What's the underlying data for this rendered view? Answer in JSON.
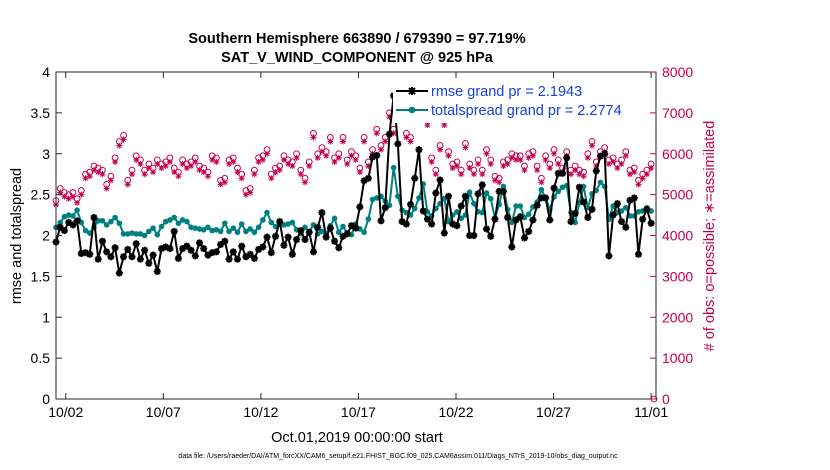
{
  "chart_data": {
    "type": "line",
    "title": "Southern Hemisphere 663890 / 679390 = 97.719%",
    "subtitle": "SAT_V_WIND_COMPONENT @ 925 hPa",
    "xlabel": "Oct.01,2019 00:00:00 start",
    "ylabel": "rmse and totalspread",
    "y2label": "# of obs: o=possible; ∗=assimilated",
    "footnote": "data file: /Users/raeder/DAI/ATM_forcXX/CAM6_setup/f.e21.FHIST_BGC.f09_025.CAM6assim.011/Diags_NTrS_2019-10/obs_diag_output.nc",
    "xlim": [
      0.5,
      31.25
    ],
    "x_ticks": [
      1,
      6,
      11,
      16,
      21,
      26,
      31
    ],
    "x_tick_labels": [
      "10/02",
      "10/07",
      "10/12",
      "10/17",
      "10/22",
      "10/27",
      "11/01"
    ],
    "ylim": [
      0,
      4
    ],
    "y_ticks": [
      "0",
      "0.5",
      "1",
      "1.5",
      "2",
      "2.5",
      "3",
      "3.5",
      "4"
    ],
    "y2lim": [
      0,
      8000
    ],
    "y2_ticks": [
      "0",
      "1000",
      "2000",
      "3000",
      "4000",
      "5000",
      "6000",
      "7000",
      "8000"
    ],
    "colors": {
      "rmse": "#000000",
      "spread": "#008080",
      "obs": "#c4004f",
      "legend_text": "#1640e0"
    },
    "legend_position": "top-right",
    "series": [
      {
        "name": "rmse grand pr = 2.1943",
        "marker": "asterisk",
        "values": [
          1.92,
          2.1,
          2.06,
          2.16,
          2.13,
          2.18,
          1.78,
          1.79,
          1.77,
          2.22,
          1.71,
          1.93,
          1.8,
          1.74,
          1.85,
          1.54,
          1.74,
          1.83,
          1.74,
          1.9,
          1.71,
          1.82,
          1.66,
          1.76,
          1.56,
          1.84,
          1.86,
          1.84,
          2.05,
          1.72,
          1.84,
          1.87,
          1.82,
          1.75,
          1.91,
          1.84,
          1.76,
          1.79,
          1.8,
          1.89,
          1.93,
          1.71,
          1.8,
          1.71,
          1.87,
          1.74,
          1.77,
          1.72,
          1.83,
          1.86,
          1.98,
          1.79,
          1.99,
          2.17,
          1.88,
          1.98,
          1.77,
          1.95,
          2.06,
          1.95,
          2.04,
          1.8,
          2.1,
          2.28,
          1.98,
          2.09,
          1.93,
          1.85,
          1.99,
          2.02,
          2.12,
          2.09,
          2.35,
          2.67,
          2.7,
          2.96,
          2.98,
          2.18,
          2.34,
          3.24,
          3.71,
          3.12,
          2.17,
          2.14,
          2.38,
          2.7,
          3.05,
          2.3,
          2.2,
          2.14,
          2.52,
          2.68,
          2.03,
          2.48,
          2.14,
          2.12,
          2.36,
          2.48,
          2.0,
          2.0,
          2.51,
          2.62,
          2.08,
          1.99,
          2.2,
          2.54,
          2.54,
          2.22,
          1.86,
          2.19,
          2.23,
          1.97,
          2.05,
          2.19,
          2.37,
          2.46,
          2.46,
          2.19,
          2.58,
          2.76,
          2.76,
          2.95,
          2.17,
          2.27,
          2.59,
          2.41,
          2.22,
          2.32,
          2.79,
          2.97,
          3.0,
          1.75,
          2.25,
          2.39,
          2.17,
          2.1,
          2.43,
          2.46,
          1.77,
          2.2,
          2.32,
          2.15
        ]
      },
      {
        "name": "totalspread grand pr = 2.2774",
        "marker": "dot",
        "values": [
          2.1,
          2.16,
          2.23,
          2.25,
          2.24,
          2.31,
          2.16,
          2.06,
          2.03,
          2.1,
          2.18,
          2.18,
          2.13,
          2.17,
          2.22,
          2.15,
          2.02,
          2.02,
          2.03,
          2.02,
          2.02,
          2.0,
          2.05,
          2.09,
          2.01,
          2.11,
          2.17,
          2.19,
          2.22,
          2.15,
          2.19,
          2.17,
          2.1,
          2.09,
          2.08,
          2.07,
          2.1,
          2.06,
          2.07,
          2.05,
          2.15,
          2.05,
          2.09,
          2.04,
          2.14,
          2.05,
          2.08,
          2.04,
          2.1,
          2.19,
          2.28,
          2.16,
          2.11,
          2.14,
          2.13,
          2.14,
          2.16,
          2.07,
          2.02,
          2.1,
          2.05,
          2.13,
          2.02,
          2.05,
          2.02,
          2.12,
          2.21,
          2.04,
          2.11,
          2.03,
          2.01,
          2.14,
          2.08,
          2.04,
          2.2,
          2.44,
          2.46,
          2.48,
          2.42,
          2.37,
          2.83,
          2.48,
          2.31,
          2.28,
          2.25,
          2.33,
          2.46,
          2.63,
          2.29,
          2.24,
          2.33,
          2.39,
          2.45,
          2.17,
          2.25,
          2.29,
          2.21,
          2.25,
          2.53,
          2.39,
          2.29,
          2.28,
          2.52,
          2.45,
          2.21,
          2.38,
          2.6,
          2.32,
          2.16,
          2.36,
          2.36,
          2.22,
          2.26,
          2.35,
          2.41,
          2.56,
          2.46,
          2.32,
          2.47,
          2.54,
          2.59,
          2.61,
          2.28,
          2.16,
          2.4,
          2.6,
          2.34,
          2.51,
          2.55,
          2.65,
          2.6,
          2.2,
          2.36,
          2.28,
          2.3,
          2.34,
          2.24,
          2.24,
          2.29,
          2.3,
          2.34,
          2.3
        ]
      },
      {
        "name": "possible",
        "axis": "right",
        "marker": "circle",
        "values": [
          4850,
          5150,
          5050,
          5000,
          5050,
          4900,
          5100,
          5500,
          5550,
          5700,
          5650,
          5600,
          5250,
          5450,
          5900,
          6300,
          6450,
          5350,
          5600,
          5950,
          5850,
          5600,
          5750,
          5650,
          5850,
          5750,
          5800,
          5900,
          5650,
          5550,
          5850,
          5750,
          5800,
          5900,
          5700,
          5650,
          5550,
          5950,
          5900,
          5350,
          5400,
          5850,
          5900,
          5650,
          5500,
          5100,
          5150,
          5600,
          5900,
          5950,
          6100,
          5500,
          5650,
          5700,
          5950,
          5850,
          5800,
          6000,
          5600,
          5400,
          5800,
          6500,
          6000,
          6150,
          6050,
          6400,
          5900,
          6000,
          6400,
          5850,
          6050,
          5950,
          5650,
          6400,
          5800,
          6100,
          6600,
          6200,
          6400,
          7000,
          6600,
          7400,
          7150,
          6500,
          6400,
          7550,
          7450,
          7750,
          6800,
          5900,
          5600,
          6200,
          6800,
          6050,
          5750,
          5800,
          5600,
          6250,
          5750,
          5600,
          5850,
          5600,
          6100,
          5850,
          5450,
          5400,
          5800,
          5850,
          6000,
          5950,
          5950,
          5700,
          6000,
          6050,
          5700,
          5400,
          5950,
          5750,
          6100,
          5850,
          5650,
          6050,
          5600,
          5700,
          5600,
          5550,
          6000,
          6300,
          5800,
          6050,
          6150,
          5850,
          5900,
          5750,
          5850,
          6050,
          5600,
          5650,
          5350,
          5500,
          5600,
          5750
        ]
      },
      {
        "name": "assimilated",
        "axis": "right",
        "marker": "asterisk",
        "values": [
          4750,
          5050,
          4950,
          4900,
          4950,
          4800,
          5000,
          5400,
          5450,
          5600,
          5550,
          5500,
          5150,
          5350,
          5800,
          6200,
          6350,
          5250,
          5500,
          5850,
          5750,
          5500,
          5650,
          5550,
          5750,
          5650,
          5700,
          5800,
          5550,
          5450,
          5750,
          5650,
          5700,
          5800,
          5600,
          5550,
          5450,
          5850,
          5800,
          5250,
          5300,
          5750,
          5800,
          5550,
          5400,
          5000,
          5050,
          5500,
          5800,
          5850,
          6000,
          5400,
          5550,
          5600,
          5850,
          5750,
          5700,
          5900,
          5500,
          5300,
          5700,
          6400,
          5900,
          6050,
          5950,
          6300,
          5800,
          5900,
          6300,
          5750,
          5950,
          5850,
          5550,
          6300,
          5700,
          6000,
          6500,
          6100,
          6300,
          6900,
          6500,
          7300,
          7050,
          6400,
          6300,
          7450,
          7350,
          7650,
          6700,
          5800,
          5500,
          6100,
          6700,
          5950,
          5650,
          5700,
          5500,
          6150,
          5650,
          5500,
          5750,
          5500,
          6000,
          5750,
          5350,
          5300,
          5700,
          5750,
          5900,
          5850,
          5850,
          5600,
          5900,
          5950,
          5600,
          5300,
          5850,
          5650,
          6000,
          5750,
          5550,
          5950,
          5500,
          5600,
          5500,
          5450,
          5900,
          6200,
          5700,
          5950,
          6050,
          5750,
          5800,
          5650,
          5750,
          5950,
          5500,
          5550,
          5250,
          5400,
          5500,
          5650
        ]
      }
    ]
  }
}
